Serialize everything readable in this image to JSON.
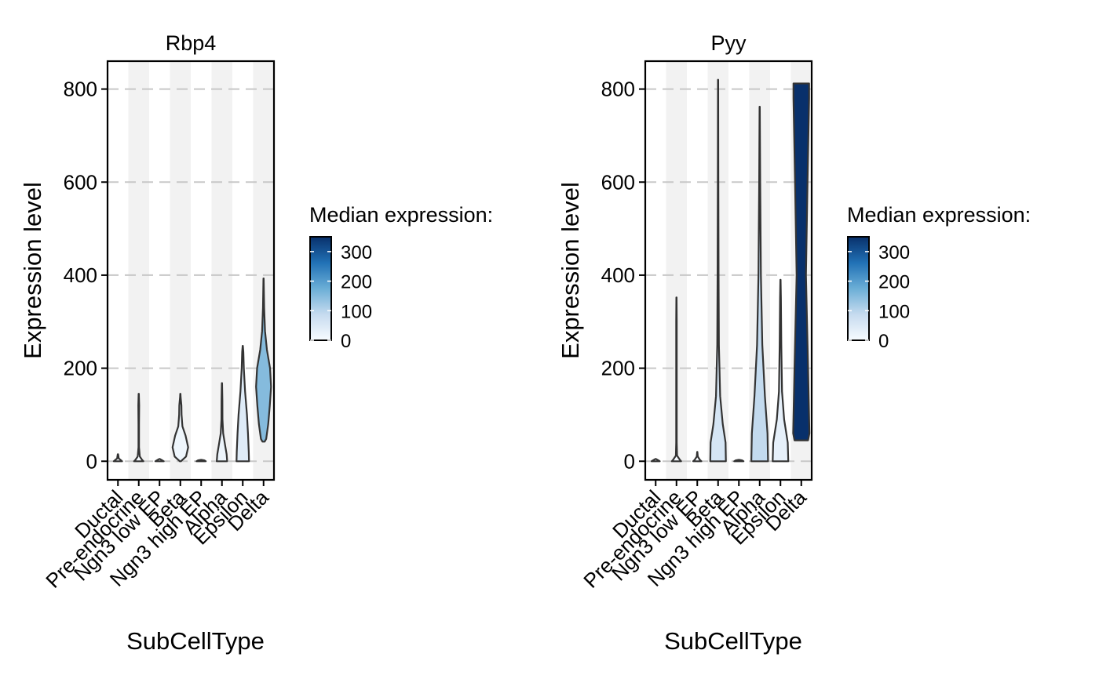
{
  "chart_data": [
    {
      "type": "violin",
      "title": "Rbp4",
      "xlabel": "SubCellType",
      "ylabel": "Expression level",
      "ylim": [
        -40,
        860
      ],
      "yticks": [
        0,
        200,
        400,
        600,
        800
      ],
      "grid": "dashed horizontal",
      "categories": [
        "Ductal",
        "Pre-endocrine",
        "Ngn3 low EP",
        "Beta",
        "Ngn3 high EP",
        "Alpha",
        "Epsilon",
        "Delta"
      ],
      "median_expression": [
        0,
        0,
        0,
        15,
        0,
        20,
        45,
        150
      ],
      "violins": [
        {
          "category": "Ductal",
          "min": 0,
          "max": 15,
          "median": 0,
          "profile": [
            [
              0,
              0.4
            ],
            [
              2,
              0.3
            ],
            [
              6,
              0.08
            ],
            [
              15,
              0.02
            ]
          ]
        },
        {
          "category": "Pre-endocrine",
          "min": 0,
          "max": 145,
          "median": 0,
          "profile": [
            [
              0,
              0.45
            ],
            [
              3,
              0.32
            ],
            [
              10,
              0.1
            ],
            [
              30,
              0.03
            ],
            [
              80,
              0.03
            ],
            [
              120,
              0.04
            ],
            [
              145,
              0.01
            ]
          ]
        },
        {
          "category": "Ngn3 low EP",
          "min": 0,
          "max": 5,
          "median": 0,
          "profile": [
            [
              0,
              0.4
            ],
            [
              2,
              0.25
            ],
            [
              5,
              0.02
            ]
          ]
        },
        {
          "category": "Beta",
          "min": 0,
          "max": 145,
          "median": 15,
          "profile": [
            [
              0,
              0.05
            ],
            [
              10,
              0.55
            ],
            [
              30,
              0.75
            ],
            [
              55,
              0.5
            ],
            [
              75,
              0.2
            ],
            [
              100,
              0.12
            ],
            [
              120,
              0.1
            ],
            [
              138,
              0.03
            ],
            [
              145,
              0.01
            ]
          ]
        },
        {
          "category": "Ngn3 high EP",
          "min": 0,
          "max": 3,
          "median": 0,
          "profile": [
            [
              0,
              0.45
            ],
            [
              2,
              0.3
            ],
            [
              3,
              0.02
            ]
          ]
        },
        {
          "category": "Alpha",
          "min": 0,
          "max": 168,
          "median": 20,
          "profile": [
            [
              0,
              0.5
            ],
            [
              15,
              0.45
            ],
            [
              35,
              0.3
            ],
            [
              60,
              0.12
            ],
            [
              90,
              0.05
            ],
            [
              130,
              0.04
            ],
            [
              168,
              0.01
            ]
          ]
        },
        {
          "category": "Epsilon",
          "min": 0,
          "max": 248,
          "median": 45,
          "profile": [
            [
              0,
              0.6
            ],
            [
              20,
              0.58
            ],
            [
              60,
              0.5
            ],
            [
              100,
              0.4
            ],
            [
              150,
              0.22
            ],
            [
              200,
              0.1
            ],
            [
              235,
              0.06
            ],
            [
              248,
              0.01
            ]
          ]
        },
        {
          "category": "Delta",
          "min": 42,
          "max": 393,
          "median": 150,
          "profile": [
            [
              42,
              0.1
            ],
            [
              48,
              0.25
            ],
            [
              80,
              0.45
            ],
            [
              120,
              0.6
            ],
            [
              160,
              0.72
            ],
            [
              200,
              0.62
            ],
            [
              240,
              0.32
            ],
            [
              280,
              0.14
            ],
            [
              330,
              0.06
            ],
            [
              393,
              0.01
            ]
          ]
        }
      ],
      "legend": {
        "title": "Median expression:",
        "ticks": [
          0,
          100,
          200,
          300
        ],
        "range": [
          0,
          350
        ],
        "colors": [
          "#f7fbff",
          "#c6dbef",
          "#6baed6",
          "#2171b5",
          "#08306b"
        ]
      }
    },
    {
      "type": "violin",
      "title": "Pyy",
      "xlabel": "SubCellType",
      "ylabel": "Expression level",
      "ylim": [
        -40,
        860
      ],
      "yticks": [
        0,
        200,
        400,
        600,
        800
      ],
      "grid": "dashed horizontal",
      "categories": [
        "Ductal",
        "Pre-endocrine",
        "Ngn3 low EP",
        "Beta",
        "Ngn3 high EP",
        "Alpha",
        "Epsilon",
        "Delta"
      ],
      "median_expression": [
        0,
        0,
        0,
        60,
        0,
        90,
        30,
        350
      ],
      "violins": [
        {
          "category": "Ductal",
          "min": 0,
          "max": 5,
          "median": 0,
          "profile": [
            [
              0,
              0.4
            ],
            [
              2,
              0.25
            ],
            [
              5,
              0.02
            ]
          ]
        },
        {
          "category": "Pre-endocrine",
          "min": 0,
          "max": 352,
          "median": 0,
          "profile": [
            [
              0,
              0.45
            ],
            [
              4,
              0.3
            ],
            [
              12,
              0.06
            ],
            [
              40,
              0.03
            ],
            [
              150,
              0.03
            ],
            [
              300,
              0.03
            ],
            [
              352,
              0.01
            ]
          ]
        },
        {
          "category": "Ngn3 low EP",
          "min": 0,
          "max": 20,
          "median": 0,
          "profile": [
            [
              0,
              0.4
            ],
            [
              3,
              0.25
            ],
            [
              10,
              0.05
            ],
            [
              20,
              0.01
            ]
          ]
        },
        {
          "category": "Beta",
          "min": 0,
          "max": 820,
          "median": 60,
          "profile": [
            [
              0,
              0.75
            ],
            [
              40,
              0.72
            ],
            [
              80,
              0.45
            ],
            [
              140,
              0.2
            ],
            [
              250,
              0.08
            ],
            [
              400,
              0.05
            ],
            [
              600,
              0.03
            ],
            [
              820,
              0.01
            ]
          ]
        },
        {
          "category": "Ngn3 high EP",
          "min": 0,
          "max": 3,
          "median": 0,
          "profile": [
            [
              0,
              0.45
            ],
            [
              2,
              0.3
            ],
            [
              3,
              0.02
            ]
          ]
        },
        {
          "category": "Alpha",
          "min": 0,
          "max": 762,
          "median": 90,
          "profile": [
            [
              0,
              0.8
            ],
            [
              60,
              0.75
            ],
            [
              140,
              0.5
            ],
            [
              250,
              0.25
            ],
            [
              400,
              0.12
            ],
            [
              600,
              0.05
            ],
            [
              762,
              0.01
            ]
          ]
        },
        {
          "category": "Epsilon",
          "min": 0,
          "max": 390,
          "median": 30,
          "profile": [
            [
              0,
              0.75
            ],
            [
              40,
              0.7
            ],
            [
              90,
              0.35
            ],
            [
              150,
              0.15
            ],
            [
              250,
              0.08
            ],
            [
              350,
              0.04
            ],
            [
              390,
              0.01
            ]
          ]
        },
        {
          "category": "Delta",
          "min": 45,
          "max": 812,
          "median": 350,
          "profile": [
            [
              45,
              0.65
            ],
            [
              60,
              0.78
            ],
            [
              200,
              0.65
            ],
            [
              400,
              0.45
            ],
            [
              600,
              0.6
            ],
            [
              780,
              0.75
            ],
            [
              812,
              0.75
            ]
          ]
        }
      ],
      "legend": {
        "title": "Median expression:",
        "ticks": [
          0,
          100,
          200,
          300
        ],
        "range": [
          0,
          350
        ],
        "colors": [
          "#f7fbff",
          "#c6dbef",
          "#6baed6",
          "#2171b5",
          "#08306b"
        ]
      }
    }
  ]
}
